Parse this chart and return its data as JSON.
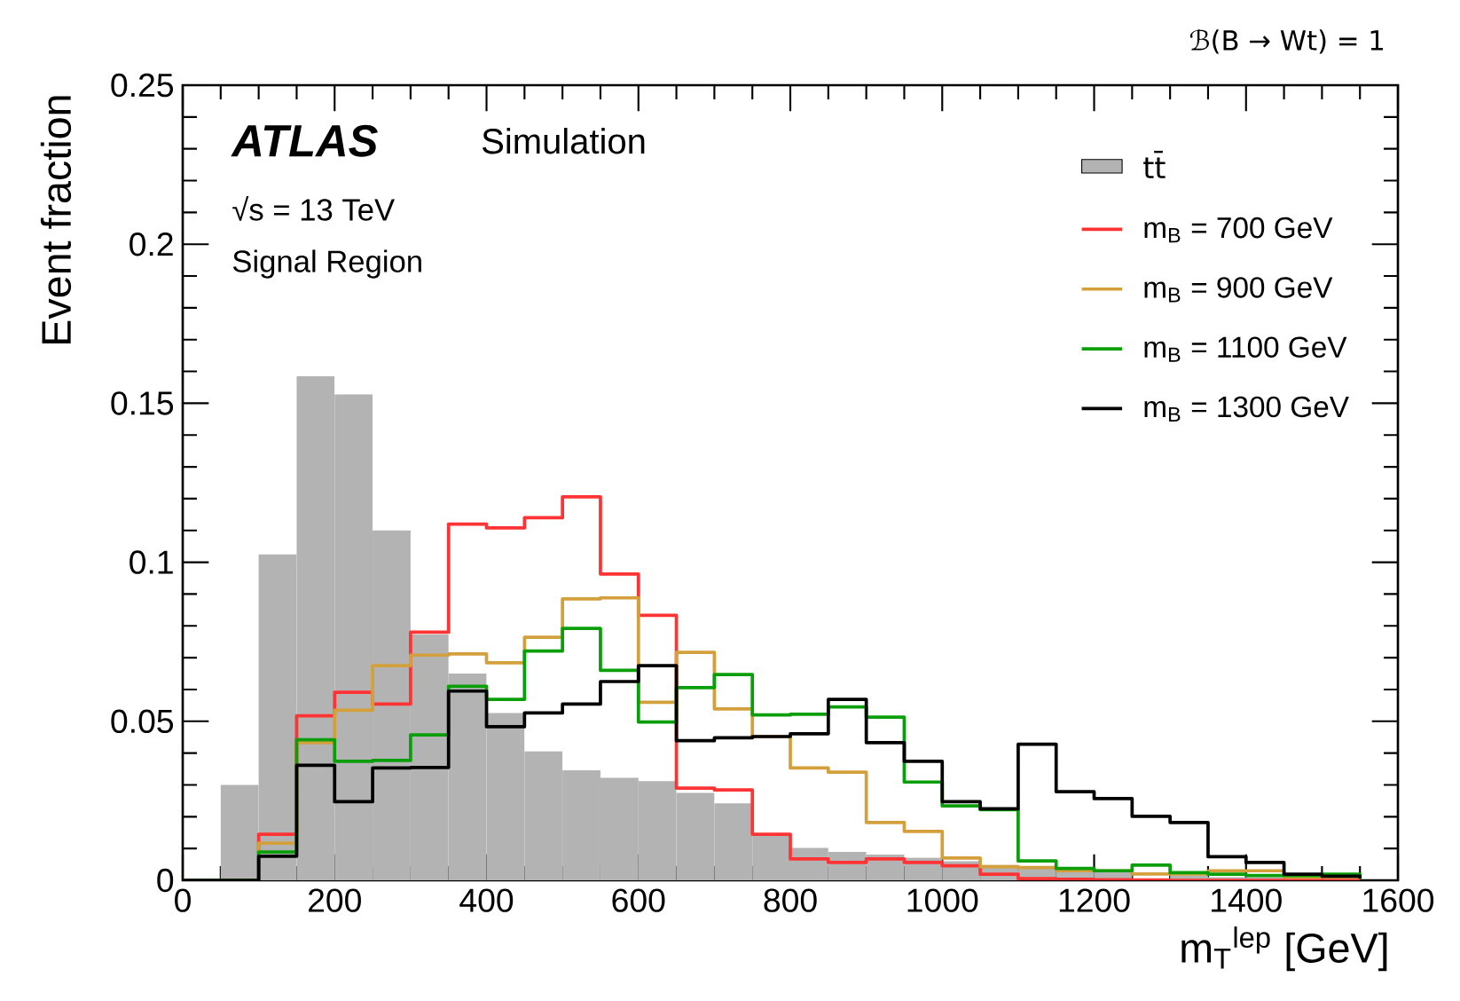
{
  "chart_data": {
    "type": "histogram",
    "xlabel": "m$_{T}$$^{lep}$ [GeV]",
    "ylabel": "Event fraction",
    "annotations": [
      "ATLAS",
      "Simulation",
      "√s = 13 TeV",
      "Signal Region",
      "ℬ(B → Wt) = 1"
    ],
    "bins": [
      0,
      50,
      100,
      150,
      200,
      250,
      300,
      350,
      400,
      450,
      500,
      550,
      600,
      650,
      700,
      750,
      800,
      850,
      900,
      950,
      1000,
      1050,
      1100,
      1150,
      1200,
      1250,
      1300,
      1350,
      1400,
      1450,
      1500,
      1550,
      1600
    ],
    "series": [
      {
        "name": "tt̄",
        "color": "#b3b3b3",
        "values": [
          0,
          0.03,
          0.1025,
          0.1585,
          0.1528,
          0.11,
          0.0773,
          0.065,
          0.0526,
          0.0405,
          0.0346,
          0.0322,
          0.0312,
          0.0275,
          0.0242,
          0.0145,
          0.0102,
          0.0089,
          0.0081,
          0.0071,
          0.006,
          0.0048,
          0.004,
          0.003,
          0.0025,
          null,
          0.0015,
          0.001,
          0.001,
          null,
          null,
          null
        ]
      },
      {
        "name": "m$_{B}$ = 700 GeV",
        "type": "step",
        "x": [
          0,
          50,
          100,
          150,
          200,
          250,
          300,
          350,
          400,
          450,
          500,
          550,
          600,
          650,
          700,
          750,
          800,
          850,
          900,
          950,
          1000,
          1050,
          1100,
          1150,
          1200,
          1250,
          1300,
          1350,
          1400,
          1450,
          1500,
          1550
        ],
        "color": "#ff3333",
        "values": [
          0,
          0,
          0.0145,
          0.0517,
          0.0591,
          0.0554,
          0.078,
          0.112,
          0.1108,
          0.114,
          0.1206,
          0.0963,
          0.0833,
          0.029,
          0.0284,
          0.0145,
          0.0067,
          0.0056,
          0.0067,
          0.0056,
          0.0046,
          0.0019,
          0.0005,
          0.0003,
          0.0002,
          0.0001,
          0,
          0,
          0,
          0,
          0,
          0
        ]
      },
      {
        "name": "m$_{B}$ = 900 GeV",
        "type": "step",
        "x": [
          0,
          50,
          100,
          150,
          200,
          250,
          300,
          350,
          400,
          450,
          500,
          550,
          600,
          650,
          700,
          750,
          800,
          850,
          900,
          950,
          1000,
          1050,
          1100,
          1150,
          1200,
          1250,
          1300,
          1350,
          1400,
          1450,
          1500,
          1550
        ],
        "color": "#d4a03c",
        "values": [
          0,
          0,
          0.0117,
          0.0433,
          0.0535,
          0.0675,
          0.0708,
          0.0712,
          0.0684,
          0.0764,
          0.0885,
          0.0888,
          0.056,
          0.0717,
          0.0539,
          0.0452,
          0.0353,
          0.034,
          0.0182,
          0.0154,
          0.007,
          0.0043,
          0.004,
          0.003,
          0.003,
          0.002,
          0.002,
          0.003,
          0.003,
          0.001,
          0.001,
          0.0005
        ]
      },
      {
        "name": "m$_{B}$ = 1100 GeV",
        "type": "step",
        "x": [
          0,
          50,
          100,
          150,
          200,
          250,
          300,
          350,
          400,
          450,
          500,
          550,
          600,
          650,
          700,
          750,
          800,
          850,
          900,
          950,
          1000,
          1050,
          1100,
          1150,
          1200,
          1250,
          1300,
          1350,
          1400,
          1450,
          1500,
          1550
        ],
        "color": "#0a9e0a",
        "values": [
          0,
          0,
          0.0089,
          0.0442,
          0.0374,
          0.0377,
          0.0457,
          0.061,
          0.0569,
          0.0721,
          0.0792,
          0.066,
          0.0498,
          0.0606,
          0.0647,
          0.052,
          0.0522,
          0.0545,
          0.0513,
          0.0309,
          0.0234,
          0.0222,
          0.0061,
          0.0037,
          0.003,
          0.0048,
          0.0024,
          0.0019,
          0.0015,
          0.0015,
          0.0019,
          0.0004
        ]
      },
      {
        "name": "m$_{B}$ = 1300 GeV",
        "type": "step",
        "x": [
          0,
          50,
          100,
          150,
          200,
          250,
          300,
          350,
          400,
          450,
          500,
          550,
          600,
          650,
          700,
          750,
          800,
          850,
          900,
          950,
          1000,
          1050,
          1100,
          1150,
          1200,
          1250,
          1300,
          1350,
          1400,
          1450,
          1500,
          1550
        ],
        "color": "#000000",
        "values": [
          0,
          0,
          0.0076,
          0.0362,
          0.0247,
          0.0353,
          0.0355,
          0.0595,
          0.0483,
          0.0526,
          0.0554,
          0.0625,
          0.0675,
          0.0439,
          0.0448,
          0.0452,
          0.0461,
          0.0569,
          0.0433,
          0.0374,
          0.0247,
          0.0225,
          0.0428,
          0.0279,
          0.0257,
          0.0201,
          0.0182,
          0.0074,
          0.0056,
          0.0019,
          0.0013,
          0.0006
        ]
      }
    ],
    "xlim": [
      0,
      1600
    ],
    "ylim": [
      0,
      0.25
    ],
    "xticks": [
      0,
      200,
      400,
      600,
      800,
      1000,
      1200,
      1400,
      1600
    ],
    "yticks": [
      0,
      0.05,
      0.1,
      0.15,
      0.2,
      0.25
    ],
    "grid": false,
    "legend": "top right"
  }
}
